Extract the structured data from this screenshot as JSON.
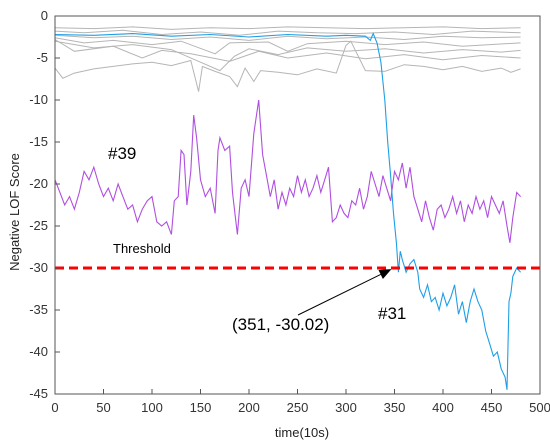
{
  "chart_data": {
    "type": "line",
    "title": "",
    "xlabel": "time(10s)",
    "ylabel": "Negative LOF Score",
    "xlim": [
      0,
      500
    ],
    "ylim": [
      -45,
      0
    ],
    "x_ticks": [
      0,
      50,
      100,
      150,
      200,
      250,
      300,
      350,
      400,
      450,
      500
    ],
    "y_ticks": [
      0,
      -5,
      -10,
      -15,
      -20,
      -25,
      -30,
      -35,
      -40,
      -45
    ],
    "grid": false,
    "legend": "none",
    "threshold": {
      "value": -30,
      "label": "Threshold",
      "color": "#ff0000"
    },
    "background_series": {
      "color": "#b5b5b5",
      "lines": [
        [
          [
            0,
            -1.4
          ],
          [
            40,
            -1.5
          ],
          [
            80,
            -1.3
          ],
          [
            120,
            -1.6
          ],
          [
            160,
            -1.4
          ],
          [
            200,
            -1.5
          ],
          [
            240,
            -1.3
          ],
          [
            280,
            -1.4
          ],
          [
            320,
            -1.5
          ],
          [
            360,
            -1.4
          ],
          [
            400,
            -1.3
          ],
          [
            440,
            -1.5
          ],
          [
            480,
            -1.4
          ]
        ],
        [
          [
            0,
            -1.8
          ],
          [
            30,
            -2.0
          ],
          [
            70,
            -1.7
          ],
          [
            110,
            -2.2
          ],
          [
            150,
            -1.9
          ],
          [
            190,
            -2.3
          ],
          [
            230,
            -1.8
          ],
          [
            270,
            -2.0
          ],
          [
            310,
            -2.1
          ],
          [
            350,
            -1.9
          ],
          [
            390,
            -2.2
          ],
          [
            430,
            -1.8
          ],
          [
            480,
            -2.0
          ]
        ],
        [
          [
            0,
            -2.3
          ],
          [
            40,
            -2.6
          ],
          [
            80,
            -2.4
          ],
          [
            120,
            -2.8
          ],
          [
            160,
            -2.5
          ],
          [
            200,
            -2.9
          ],
          [
            240,
            -2.4
          ],
          [
            280,
            -2.7
          ],
          [
            320,
            -2.5
          ],
          [
            360,
            -2.8
          ],
          [
            400,
            -2.4
          ],
          [
            440,
            -2.6
          ],
          [
            480,
            -2.5
          ]
        ],
        [
          [
            0,
            -2.6
          ],
          [
            30,
            -3.2
          ],
          [
            60,
            -2.9
          ],
          [
            100,
            -3.4
          ],
          [
            130,
            -3.0
          ],
          [
            165,
            -4.5
          ],
          [
            180,
            -3.2
          ],
          [
            220,
            -3.1
          ],
          [
            240,
            -4.2
          ],
          [
            260,
            -3.3
          ],
          [
            300,
            -3.0
          ],
          [
            340,
            -3.4
          ],
          [
            380,
            -3.1
          ],
          [
            420,
            -3.6
          ],
          [
            480,
            -3.2
          ]
        ],
        [
          [
            0,
            -3.0
          ],
          [
            40,
            -3.8
          ],
          [
            80,
            -3.4
          ],
          [
            120,
            -4.0
          ],
          [
            150,
            -5.5
          ],
          [
            170,
            -6.5
          ],
          [
            185,
            -4.8
          ],
          [
            200,
            -3.9
          ],
          [
            230,
            -4.6
          ],
          [
            260,
            -3.8
          ],
          [
            300,
            -4.2
          ],
          [
            340,
            -3.9
          ],
          [
            380,
            -4.4
          ],
          [
            420,
            -4.0
          ],
          [
            460,
            -4.3
          ],
          [
            480,
            -4.1
          ]
        ],
        [
          [
            0,
            -2.8
          ],
          [
            20,
            -4.2
          ],
          [
            60,
            -3.6
          ],
          [
            90,
            -5.0
          ],
          [
            110,
            -4.1
          ],
          [
            140,
            -4.5
          ],
          [
            180,
            -5.4
          ],
          [
            210,
            -4.2
          ],
          [
            240,
            -5.0
          ],
          [
            280,
            -4.4
          ],
          [
            320,
            -5.1
          ],
          [
            360,
            -4.6
          ],
          [
            400,
            -5.2
          ],
          [
            440,
            -4.7
          ],
          [
            480,
            -5.0
          ]
        ],
        [
          [
            0,
            -6.2
          ],
          [
            8,
            -7.4
          ],
          [
            20,
            -6.8
          ],
          [
            40,
            -6.3
          ],
          [
            60,
            -6.0
          ],
          [
            80,
            -5.7
          ],
          [
            100,
            -5.5
          ],
          [
            120,
            -5.9
          ],
          [
            140,
            -5.3
          ],
          [
            148,
            -9.0
          ],
          [
            152,
            -6.0
          ],
          [
            165,
            -6.6
          ],
          [
            180,
            -7.2
          ],
          [
            188,
            -8.4
          ],
          [
            196,
            -6.2
          ],
          [
            205,
            -7.8
          ],
          [
            212,
            -6.5
          ],
          [
            230,
            -6.7
          ],
          [
            250,
            -7.0
          ],
          [
            270,
            -6.3
          ],
          [
            290,
            -6.8
          ],
          [
            300,
            -3.5
          ],
          [
            305,
            -3.0
          ],
          [
            320,
            -6.5
          ],
          [
            340,
            -6.6
          ],
          [
            360,
            -5.8
          ],
          [
            380,
            -6.0
          ],
          [
            400,
            -6.4
          ],
          [
            420,
            -6.0
          ],
          [
            440,
            -6.6
          ],
          [
            460,
            -6.2
          ],
          [
            470,
            -6.7
          ],
          [
            480,
            -6.3
          ]
        ]
      ]
    },
    "series": [
      {
        "name": "#39",
        "color": "#b04fe0",
        "points": [
          [
            0,
            -19.5
          ],
          [
            5,
            -21.0
          ],
          [
            10,
            -22.5
          ],
          [
            15,
            -21.5
          ],
          [
            20,
            -23.0
          ],
          [
            25,
            -21.0
          ],
          [
            30,
            -18.5
          ],
          [
            35,
            -19.5
          ],
          [
            40,
            -18.0
          ],
          [
            45,
            -20.0
          ],
          [
            50,
            -21.5
          ],
          [
            55,
            -20.5
          ],
          [
            60,
            -22.0
          ],
          [
            65,
            -20.0
          ],
          [
            70,
            -21.5
          ],
          [
            75,
            -23.0
          ],
          [
            80,
            -22.5
          ],
          [
            85,
            -24.5
          ],
          [
            90,
            -23.0
          ],
          [
            95,
            -22.0
          ],
          [
            100,
            -21.5
          ],
          [
            105,
            -24.5
          ],
          [
            110,
            -25.0
          ],
          [
            115,
            -24.5
          ],
          [
            120,
            -26.0
          ],
          [
            123,
            -22.0
          ],
          [
            127,
            -21.5
          ],
          [
            130,
            -16.0
          ],
          [
            133,
            -16.5
          ],
          [
            136,
            -22.5
          ],
          [
            140,
            -18.5
          ],
          [
            143,
            -11.8
          ],
          [
            146,
            -14.5
          ],
          [
            150,
            -19.5
          ],
          [
            155,
            -21.5
          ],
          [
            160,
            -20.5
          ],
          [
            165,
            -23.5
          ],
          [
            168,
            -16.0
          ],
          [
            170,
            -14.5
          ],
          [
            175,
            -16.0
          ],
          [
            180,
            -15.5
          ],
          [
            183,
            -21.0
          ],
          [
            186,
            -24.0
          ],
          [
            188,
            -26.0
          ],
          [
            192,
            -20.5
          ],
          [
            196,
            -19.5
          ],
          [
            200,
            -21.5
          ],
          [
            205,
            -14.0
          ],
          [
            210,
            -10.0
          ],
          [
            214,
            -16.5
          ],
          [
            218,
            -19.0
          ],
          [
            222,
            -21.5
          ],
          [
            226,
            -19.5
          ],
          [
            230,
            -23.0
          ],
          [
            234,
            -21.0
          ],
          [
            238,
            -22.5
          ],
          [
            242,
            -20.5
          ],
          [
            246,
            -21.5
          ],
          [
            250,
            -19.0
          ],
          [
            254,
            -21.0
          ],
          [
            258,
            -19.5
          ],
          [
            262,
            -21.5
          ],
          [
            266,
            -20.5
          ],
          [
            270,
            -19.0
          ],
          [
            274,
            -21.0
          ],
          [
            278,
            -19.5
          ],
          [
            282,
            -18.0
          ],
          [
            286,
            -24.5
          ],
          [
            290,
            -24.0
          ],
          [
            294,
            -22.5
          ],
          [
            298,
            -23.5
          ],
          [
            302,
            -24.0
          ],
          [
            306,
            -22.0
          ],
          [
            310,
            -22.5
          ],
          [
            314,
            -20.5
          ],
          [
            318,
            -23.0
          ],
          [
            322,
            -21.5
          ],
          [
            326,
            -18.5
          ],
          [
            330,
            -20.0
          ],
          [
            334,
            -21.5
          ],
          [
            338,
            -19.0
          ],
          [
            342,
            -20.5
          ],
          [
            346,
            -22.0
          ],
          [
            350,
            -18.5
          ],
          [
            354,
            -19.5
          ],
          [
            358,
            -17.5
          ],
          [
            362,
            -20.5
          ],
          [
            366,
            -18.0
          ],
          [
            370,
            -21.5
          ],
          [
            374,
            -23.0
          ],
          [
            378,
            -24.5
          ],
          [
            382,
            -22.0
          ],
          [
            386,
            -24.0
          ],
          [
            390,
            -25.5
          ],
          [
            394,
            -23.0
          ],
          [
            398,
            -22.5
          ],
          [
            402,
            -24.0
          ],
          [
            406,
            -23.0
          ],
          [
            410,
            -21.5
          ],
          [
            414,
            -23.5
          ],
          [
            418,
            -22.0
          ],
          [
            422,
            -24.5
          ],
          [
            426,
            -22.5
          ],
          [
            430,
            -23.5
          ],
          [
            434,
            -21.5
          ],
          [
            438,
            -23.0
          ],
          [
            442,
            -22.0
          ],
          [
            446,
            -24.0
          ],
          [
            450,
            -21.5
          ],
          [
            454,
            -22.5
          ],
          [
            458,
            -23.5
          ],
          [
            462,
            -22.0
          ],
          [
            466,
            -25.0
          ],
          [
            469,
            -27.0
          ],
          [
            472,
            -24.0
          ],
          [
            476,
            -21.0
          ],
          [
            480,
            -21.5
          ]
        ]
      },
      {
        "name": "#31",
        "color": "#1e9fe6",
        "points": [
          [
            0,
            -2.2
          ],
          [
            40,
            -2.3
          ],
          [
            80,
            -2.1
          ],
          [
            120,
            -2.4
          ],
          [
            160,
            -2.2
          ],
          [
            200,
            -2.5
          ],
          [
            240,
            -2.2
          ],
          [
            280,
            -2.4
          ],
          [
            300,
            -2.3
          ],
          [
            320,
            -2.4
          ],
          [
            325,
            -2.9
          ],
          [
            328,
            -2.1
          ],
          [
            332,
            -3.2
          ],
          [
            336,
            -5.5
          ],
          [
            340,
            -10.0
          ],
          [
            343,
            -15.0
          ],
          [
            346,
            -19.0
          ],
          [
            349,
            -23.5
          ],
          [
            352,
            -27.0
          ],
          [
            354,
            -30.5
          ],
          [
            356,
            -28.0
          ],
          [
            358,
            -29.0
          ],
          [
            362,
            -30.5
          ],
          [
            366,
            -29.5
          ],
          [
            370,
            -29.0
          ],
          [
            374,
            -30.5
          ],
          [
            376,
            -32.5
          ],
          [
            380,
            -33.5
          ],
          [
            384,
            -32.0
          ],
          [
            388,
            -34.0
          ],
          [
            392,
            -33.5
          ],
          [
            396,
            -35.0
          ],
          [
            400,
            -33.0
          ],
          [
            404,
            -34.5
          ],
          [
            408,
            -33.5
          ],
          [
            412,
            -32.0
          ],
          [
            416,
            -35.5
          ],
          [
            420,
            -34.0
          ],
          [
            424,
            -36.5
          ],
          [
            428,
            -34.0
          ],
          [
            432,
            -32.5
          ],
          [
            436,
            -34.0
          ],
          [
            440,
            -35.0
          ],
          [
            444,
            -37.5
          ],
          [
            448,
            -39.0
          ],
          [
            452,
            -40.5
          ],
          [
            456,
            -40.0
          ],
          [
            460,
            -42.0
          ],
          [
            464,
            -43.0
          ],
          [
            466,
            -44.5
          ],
          [
            468,
            -34.0
          ],
          [
            470,
            -33.0
          ],
          [
            472,
            -31.0
          ],
          [
            476,
            -30.0
          ],
          [
            480,
            -30.5
          ]
        ]
      }
    ],
    "annotations": {
      "label_39": "#39",
      "label_31": "#31",
      "point_text": "(351, -30.02)",
      "point": [
        351,
        -30.02
      ]
    }
  }
}
